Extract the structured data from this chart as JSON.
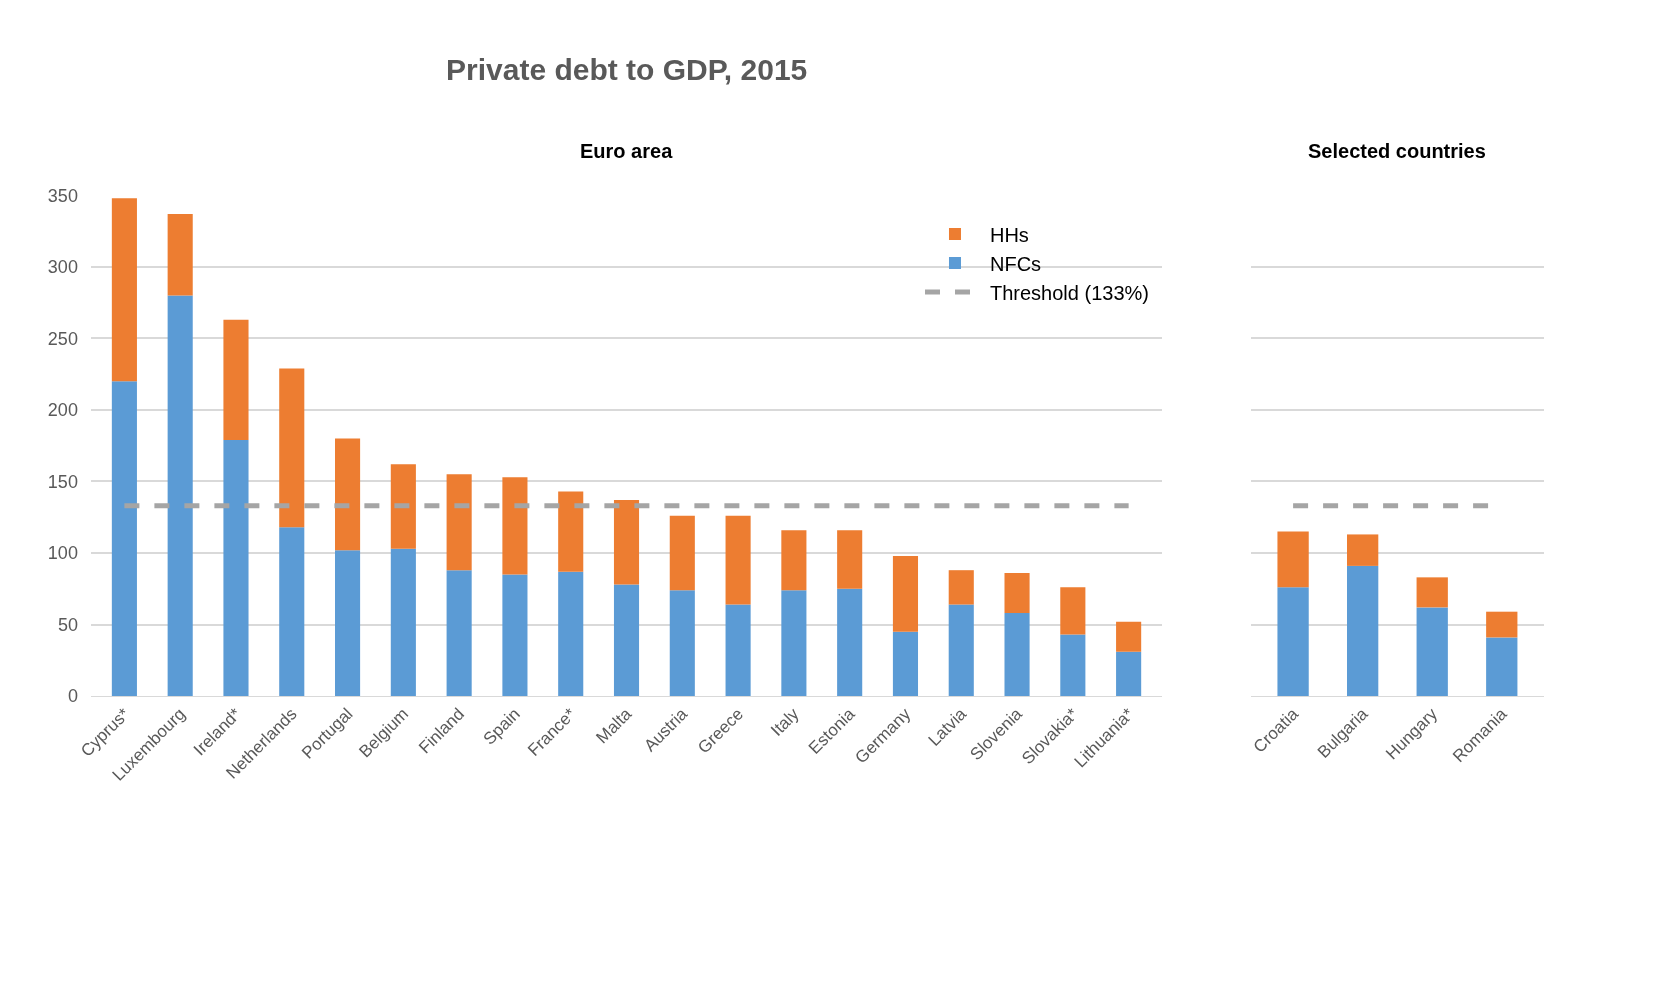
{
  "chart_data": [
    {
      "type": "bar",
      "title": "Private debt to GDP, 2015",
      "subtitle": "Euro area",
      "stacked": true,
      "categories": [
        "Cyprus*",
        "Luxembourg",
        "Ireland*",
        "Netherlands",
        "Portugal",
        "Belgium",
        "Finland",
        "Spain",
        "France*",
        "Malta",
        "Austria",
        "Greece",
        "Italy",
        "Estonia",
        "Germany",
        "Latvia",
        "Slovenia",
        "Slovakia*",
        "Lithuania*"
      ],
      "series": [
        {
          "name": "NFCs",
          "color": "#5b9bd5",
          "values": [
            220,
            280,
            179,
            118,
            102,
            103,
            88,
            85,
            87,
            78,
            74,
            64,
            74,
            75,
            45,
            64,
            58,
            43,
            31
          ]
        },
        {
          "name": "HHs",
          "color": "#ed7d31",
          "values": [
            128,
            57,
            84,
            111,
            78,
            59,
            67,
            68,
            56,
            59,
            52,
            62,
            42,
            41,
            53,
            24,
            28,
            33,
            21
          ]
        }
      ],
      "ylim": [
        0,
        350
      ],
      "yticks": [
        0,
        50,
        100,
        150,
        200,
        250,
        300,
        350
      ],
      "grid": "y",
      "ref_lines": [
        {
          "axis": "y",
          "value": 133,
          "label": "Threshold (133%)",
          "color": "#a5a5a5",
          "line_style": "dashed"
        }
      ],
      "legend": "top right"
    },
    {
      "type": "bar",
      "subtitle": "Selected countries",
      "stacked": true,
      "categories": [
        "Croatia",
        "Bulgaria",
        "Hungary",
        "Romania"
      ],
      "series": [
        {
          "color": "#5b9bd5",
          "values": [
            76,
            91,
            62,
            41
          ]
        },
        {
          "color": "#ed7d31",
          "values": [
            39,
            22,
            21,
            18
          ]
        }
      ],
      "ylim": [
        0,
        350
      ],
      "yticks": [
        0,
        50,
        100,
        150,
        200,
        250,
        300,
        350
      ],
      "grid": "y",
      "tick_labels": "x",
      "ref_lines": [
        {
          "axis": "y",
          "value": 133,
          "color": "#a5a5a5",
          "line_style": "dashed"
        }
      ]
    }
  ]
}
